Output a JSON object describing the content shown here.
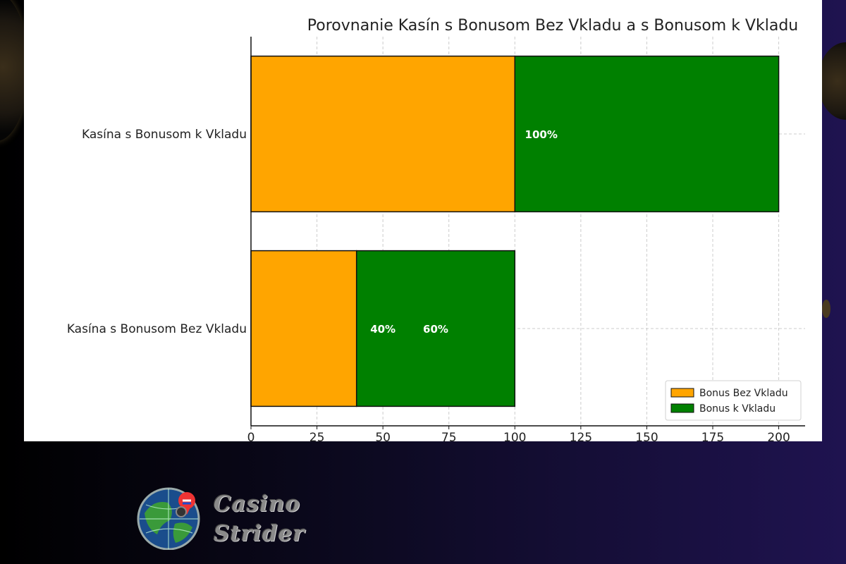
{
  "chart_data": {
    "type": "bar",
    "orientation": "horizontal",
    "stacked": true,
    "title": "Porovnanie Kasín s Bonusom Bez Vkladu a s Bonusom k Vkladu",
    "categories": [
      "Kasína s Bonusom Bez Vkladu",
      "Kasína s Bonusom k Vkladu"
    ],
    "series": [
      {
        "name": "Bonus Bez Vkladu",
        "values": [
          40,
          100
        ],
        "color": "#ffa500"
      },
      {
        "name": "Bonus k Vkladu",
        "values": [
          60,
          100
        ],
        "color": "#008000"
      }
    ],
    "data_labels": [
      {
        "text": "40%",
        "category": "Kasína s Bonusom Bez Vkladu",
        "x": 50
      },
      {
        "text": "60%",
        "category": "Kasína s Bonusom Bez Vkladu",
        "x": 70
      },
      {
        "text": "100%",
        "category": "Kasína s Bonusom k Vkladu",
        "x": 110
      }
    ],
    "xlim": [
      0,
      210
    ],
    "xticks": [
      0,
      25,
      50,
      75,
      100,
      125,
      150,
      175,
      200
    ],
    "grid": true,
    "legend_position": "bottom-right"
  },
  "brand": {
    "line1": "Casino",
    "line2": "Strider"
  }
}
